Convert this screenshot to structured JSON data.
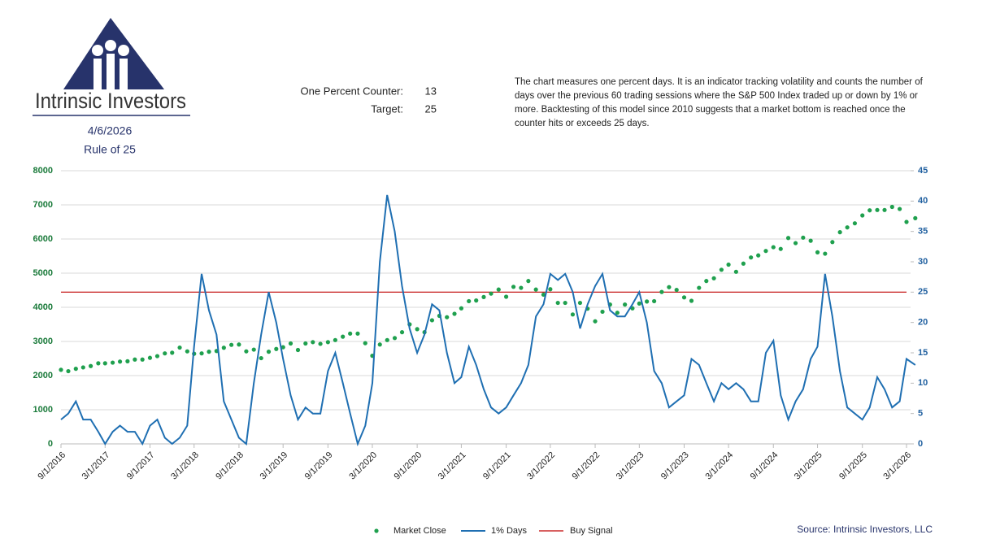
{
  "header": {
    "company": "Intrinsic Investors",
    "date": "4/6/2026",
    "subtitle": "Rule of 25",
    "counter_label": "One Percent Counter:",
    "counter_value": 13,
    "target_label": "Target:",
    "target_value": 25,
    "description": "The chart measures one percent days.  It is an indicator tracking volatility and counts the number of days over the previous 60 trading sessions where the S&P 500 Index traded up or down by 1% or more. Backtesting of this model since 2010 suggests that a market bottom is reached once the counter hits or exceeds 25 days.",
    "source": "Source: Intrinsic Investors, LLC"
  },
  "chart_data": {
    "type": "line",
    "x": [
      "2016-09-01",
      "2016-10-01",
      "2016-11-01",
      "2016-12-01",
      "2017-01-01",
      "2017-02-01",
      "2017-03-01",
      "2017-04-01",
      "2017-05-01",
      "2017-06-01",
      "2017-07-01",
      "2017-08-01",
      "2017-09-01",
      "2017-10-01",
      "2017-11-01",
      "2017-12-01",
      "2018-01-01",
      "2018-02-01",
      "2018-03-01",
      "2018-04-01",
      "2018-05-01",
      "2018-06-01",
      "2018-07-01",
      "2018-08-01",
      "2018-09-01",
      "2018-10-01",
      "2018-11-01",
      "2018-12-01",
      "2019-01-01",
      "2019-02-01",
      "2019-03-01",
      "2019-04-01",
      "2019-05-01",
      "2019-06-01",
      "2019-07-01",
      "2019-08-01",
      "2019-09-01",
      "2019-10-01",
      "2019-11-01",
      "2019-12-01",
      "2020-01-01",
      "2020-02-01",
      "2020-03-01",
      "2020-04-01",
      "2020-05-01",
      "2020-06-01",
      "2020-07-01",
      "2020-08-01",
      "2020-09-01",
      "2020-10-01",
      "2020-11-01",
      "2020-12-01",
      "2021-01-01",
      "2021-02-01",
      "2021-03-01",
      "2021-04-01",
      "2021-05-01",
      "2021-06-01",
      "2021-07-01",
      "2021-08-01",
      "2021-09-01",
      "2021-10-01",
      "2021-11-01",
      "2021-12-01",
      "2022-01-01",
      "2022-02-01",
      "2022-03-01",
      "2022-04-01",
      "2022-05-01",
      "2022-06-01",
      "2022-07-01",
      "2022-08-01",
      "2022-09-01",
      "2022-10-01",
      "2022-11-01",
      "2022-12-01",
      "2023-01-01",
      "2023-02-01",
      "2023-03-01",
      "2023-04-01",
      "2023-05-01",
      "2023-06-01",
      "2023-07-01",
      "2023-08-01",
      "2023-09-01",
      "2023-10-01",
      "2023-11-01",
      "2023-12-01",
      "2024-01-01",
      "2024-02-01",
      "2024-03-01",
      "2024-04-01",
      "2024-05-01",
      "2024-06-01",
      "2024-07-01",
      "2024-08-01",
      "2024-09-01",
      "2024-10-01",
      "2024-11-01",
      "2024-12-01",
      "2025-01-01",
      "2025-02-01",
      "2025-03-01",
      "2025-04-01",
      "2025-05-01",
      "2025-06-01",
      "2025-07-01",
      "2025-08-01",
      "2025-09-01",
      "2025-10-01",
      "2025-11-01",
      "2025-12-01",
      "2026-01-01",
      "2026-02-01",
      "2026-03-01",
      "2026-04-06"
    ],
    "series": [
      {
        "name": "Market Close",
        "color": "#1fa04e",
        "marker": "dot",
        "axis": "y",
        "values": [
          2170,
          2130,
          2200,
          2240,
          2280,
          2360,
          2360,
          2380,
          2410,
          2420,
          2470,
          2470,
          2520,
          2570,
          2650,
          2670,
          2820,
          2710,
          2640,
          2650,
          2700,
          2720,
          2815,
          2900,
          2910,
          2710,
          2760,
          2510,
          2700,
          2780,
          2830,
          2940,
          2750,
          2940,
          2980,
          2930,
          2980,
          3040,
          3140,
          3230,
          3230,
          2950,
          2580,
          2910,
          3040,
          3100,
          3270,
          3500,
          3360,
          3270,
          3620,
          3750,
          3710,
          3810,
          3970,
          4180,
          4200,
          4300,
          4400,
          4520,
          4310,
          4600,
          4570,
          4770,
          4520,
          4370,
          4530,
          4130,
          4130,
          3790,
          4130,
          3960,
          3590,
          3870,
          4080,
          3840,
          4080,
          3970,
          4110,
          4170,
          4180,
          4450,
          4590,
          4510,
          4290,
          4190,
          4570,
          4770,
          4850,
          5100,
          5250,
          5040,
          5280,
          5460,
          5520,
          5650,
          5760,
          5710,
          6030,
          5880,
          6040,
          5950,
          5610,
          5570,
          5910,
          6200,
          6340,
          6460,
          6690,
          6840,
          6850,
          6850,
          6940,
          6880,
          6500,
          6610
        ]
      },
      {
        "name": "1% Days",
        "color": "#1f6fb2",
        "marker": "line",
        "axis": "y2",
        "values": [
          4,
          5,
          7,
          4,
          4,
          2,
          0,
          2,
          3,
          2,
          2,
          0,
          3,
          4,
          1,
          0,
          1,
          3,
          16,
          28,
          22,
          18,
          7,
          4,
          1,
          0,
          10,
          18,
          25,
          20,
          14,
          8,
          4,
          6,
          5,
          5,
          12,
          15,
          10,
          5,
          0,
          3,
          10,
          30,
          41,
          35,
          26,
          19,
          15,
          18,
          23,
          22,
          15,
          10,
          11,
          16,
          13,
          9,
          6,
          5,
          6,
          8,
          10,
          13,
          21,
          23,
          28,
          27,
          28,
          25,
          19,
          23,
          26,
          28,
          22,
          21,
          21,
          23,
          25,
          20,
          12,
          10,
          6,
          7,
          8,
          14,
          13,
          10,
          7,
          10,
          9,
          10,
          9,
          7,
          7,
          15,
          17,
          8,
          4,
          7,
          9,
          14,
          16,
          28,
          21,
          12,
          6,
          5,
          4,
          6,
          11,
          9,
          6,
          7,
          14,
          13
        ]
      }
    ],
    "reference_lines": [
      {
        "name": "Buy Signal",
        "value": 25,
        "color": "#c00000",
        "axis": "y2"
      }
    ],
    "ylim": [
      0,
      8000
    ],
    "yticks": [
      0,
      1000,
      2000,
      3000,
      4000,
      5000,
      6000,
      7000,
      8000
    ],
    "y2lim": [
      0,
      45
    ],
    "y2ticks": [
      0,
      5,
      10,
      15,
      20,
      25,
      30,
      35,
      40,
      45
    ],
    "xlim": [
      "2016-09-01",
      "2026-03-01"
    ],
    "xticks": [
      {
        "value": "2016-09-01",
        "label": "9/1/2016"
      },
      {
        "value": "2017-03-01",
        "label": "3/1/2017"
      },
      {
        "value": "2017-09-01",
        "label": "9/1/2017"
      },
      {
        "value": "2018-03-01",
        "label": "3/1/2018"
      },
      {
        "value": "2018-09-01",
        "label": "9/1/2018"
      },
      {
        "value": "2019-03-01",
        "label": "3/1/2019"
      },
      {
        "value": "2019-09-01",
        "label": "9/1/2019"
      },
      {
        "value": "2020-03-01",
        "label": "3/1/2020"
      },
      {
        "value": "2020-09-01",
        "label": "9/1/2020"
      },
      {
        "value": "2021-03-01",
        "label": "3/1/2021"
      },
      {
        "value": "2021-09-01",
        "label": "9/1/2021"
      },
      {
        "value": "2022-03-01",
        "label": "3/1/2022"
      },
      {
        "value": "2022-09-01",
        "label": "9/1/2022"
      },
      {
        "value": "2023-03-01",
        "label": "3/1/2023"
      },
      {
        "value": "2023-09-01",
        "label": "9/1/2023"
      },
      {
        "value": "2024-03-01",
        "label": "3/1/2024"
      },
      {
        "value": "2024-09-01",
        "label": "9/1/2024"
      },
      {
        "value": "2025-03-01",
        "label": "3/1/2025"
      },
      {
        "value": "2025-09-01",
        "label": "9/1/2025"
      },
      {
        "value": "2026-03-01",
        "label": "3/1/2026"
      }
    ],
    "grid": true,
    "legend": "bottom"
  }
}
